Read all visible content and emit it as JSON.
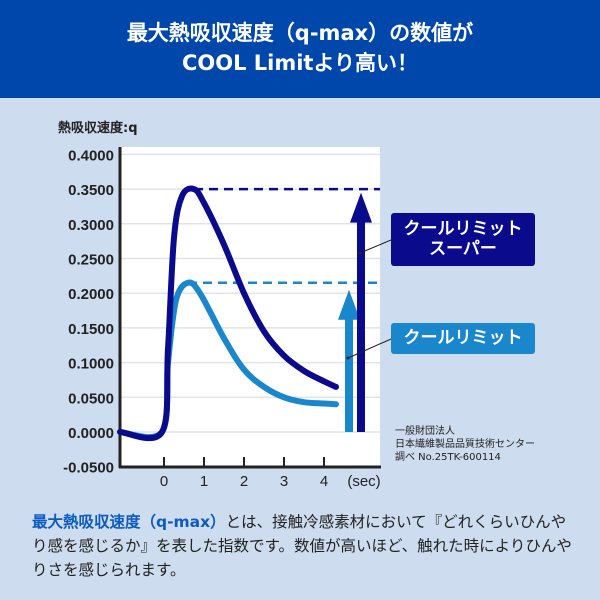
{
  "header": {
    "line1": "最大熱吸収速度（q-max）の数値が",
    "line2": "COOL Limitより高い！"
  },
  "labels": {
    "super_line1": "クールリミット",
    "super_line2": "スーパー",
    "cool": "クールリミット"
  },
  "source": {
    "line1": "一般財団法人",
    "line2": "日本繊維製品品質技術センター",
    "line3": "調べ No.25TK-600114"
  },
  "description": {
    "highlight": "最大熱吸収速度（q-max）",
    "text": "とは、接触冷感素材において『どれくらいひんやり感を感じるか』を表した指数です。数値が高いほど、触れた時によりひんやりさを感じられます。"
  },
  "colors": {
    "header": "#0047ab",
    "background": "#cddcee",
    "super": "#0a0a8c",
    "cool": "#1a86cc"
  },
  "chart_data": {
    "type": "line",
    "ylabel": "熱吸収速度:q",
    "xlabel": "(sec)",
    "xlim": [
      -1.1,
      5.4
    ],
    "ylim": [
      -0.05,
      0.4
    ],
    "x_ticks": [
      "0",
      "1",
      "2",
      "3",
      "4"
    ],
    "y_ticks": [
      "0.4000",
      "0.3500",
      "0.3000",
      "0.2500",
      "0.2000",
      "0.1500",
      "0.1000",
      "0.0500",
      "0.0000",
      "-0.0500"
    ],
    "grid": true,
    "series": [
      {
        "name": "クールリミットスーパー",
        "color": "#0a0a8c",
        "peak": 0.35,
        "x": [
          -1.1,
          -0.05,
          0.1,
          0.25,
          0.45,
          0.75,
          1.0,
          1.5,
          2.0,
          2.5,
          3.0,
          3.5,
          4.0,
          4.3
        ],
        "y": [
          0,
          0,
          0.12,
          0.28,
          0.34,
          0.35,
          0.33,
          0.27,
          0.2,
          0.145,
          0.11,
          0.088,
          0.073,
          0.065
        ]
      },
      {
        "name": "クールリミット",
        "color": "#1a86cc",
        "peak": 0.215,
        "x": [
          -1.1,
          -0.05,
          0.1,
          0.3,
          0.6,
          0.9,
          1.5,
          2.0,
          2.5,
          3.0,
          3.5,
          4.0,
          4.3
        ],
        "y": [
          0,
          0,
          0.1,
          0.19,
          0.215,
          0.2,
          0.135,
          0.09,
          0.065,
          0.05,
          0.043,
          0.041,
          0.04
        ]
      }
    ]
  }
}
